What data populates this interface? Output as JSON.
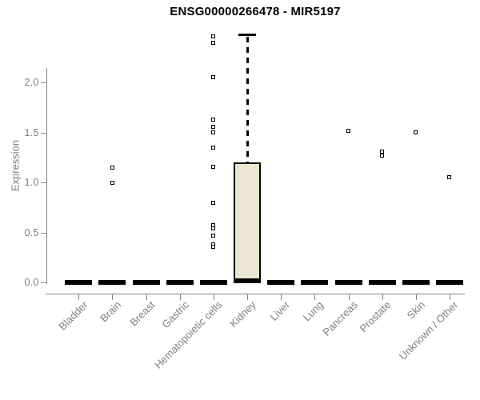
{
  "title": "ENSG00000266478 - MIR5197",
  "chart_data": {
    "type": "boxplot",
    "title": "ENSG00000266478 - MIR5197",
    "ylabel": "Expression",
    "xlabel": "",
    "ylim": [
      0,
      2.5
    ],
    "yticks": [
      0,
      0.5,
      1,
      1.5,
      2
    ],
    "ytick_labels": [
      "0.0",
      "0.5",
      "1.0",
      "1.5",
      "2.0"
    ],
    "grid": false,
    "legend": "none",
    "categories": [
      "Bladder",
      "Brain",
      "Breast",
      "Gastric",
      "Hematopoietic cells",
      "Kidney",
      "Liver",
      "Lung",
      "Pancreas",
      "Prostate",
      "Skin",
      "Unknown / Other"
    ],
    "boxes": [
      {
        "category": "Bladder",
        "median": 0,
        "q1": 0,
        "q3": 0,
        "whisker_low": 0,
        "whisker_high": 0,
        "outliers": []
      },
      {
        "category": "Brain",
        "median": 0,
        "q1": 0,
        "q3": 0,
        "whisker_low": 0,
        "whisker_high": 0,
        "outliers": [
          1.15,
          1.0
        ]
      },
      {
        "category": "Breast",
        "median": 0,
        "q1": 0,
        "q3": 0,
        "whisker_low": 0,
        "whisker_high": 0,
        "outliers": []
      },
      {
        "category": "Gastric",
        "median": 0,
        "q1": 0,
        "q3": 0,
        "whisker_low": 0,
        "whisker_high": 0,
        "outliers": []
      },
      {
        "category": "Hematopoietic cells",
        "median": 0,
        "q1": 0,
        "q3": 0,
        "whisker_low": 0,
        "whisker_high": 0,
        "outliers": [
          2.46,
          2.4,
          2.05,
          1.63,
          1.56,
          1.5,
          1.35,
          1.16,
          0.8,
          0.57,
          0.54,
          0.47,
          0.38,
          0.36
        ]
      },
      {
        "category": "Kidney",
        "median": 0.02,
        "q1": 0,
        "q3": 1.2,
        "whisker_low": 0,
        "whisker_high": 2.48,
        "outliers": []
      },
      {
        "category": "Liver",
        "median": 0,
        "q1": 0,
        "q3": 0,
        "whisker_low": 0,
        "whisker_high": 0,
        "outliers": []
      },
      {
        "category": "Lung",
        "median": 0,
        "q1": 0,
        "q3": 0,
        "whisker_low": 0,
        "whisker_high": 0,
        "outliers": []
      },
      {
        "category": "Pancreas",
        "median": 0,
        "q1": 0,
        "q3": 0,
        "whisker_low": 0,
        "whisker_high": 0,
        "outliers": [
          1.52
        ]
      },
      {
        "category": "Prostate",
        "median": 0,
        "q1": 0,
        "q3": 0,
        "whisker_low": 0,
        "whisker_high": 0,
        "outliers": [
          1.31,
          1.27
        ]
      },
      {
        "category": "Skin",
        "median": 0,
        "q1": 0,
        "q3": 0,
        "whisker_low": 0,
        "whisker_high": 0,
        "outliers": [
          1.5
        ]
      },
      {
        "category": "Unknown / Other",
        "median": 0,
        "q1": 0,
        "q3": 0,
        "whisker_low": 0,
        "whisker_high": 0,
        "outliers": [
          1.05
        ]
      }
    ],
    "colors": {
      "background": "#ffffff",
      "box_fill": "#ECE7D2",
      "box_border": "#000000",
      "median": "#000000",
      "outlier": "#000000",
      "axis": "#848484",
      "tick_label": "#7f7f7f",
      "title": "#000000"
    }
  }
}
